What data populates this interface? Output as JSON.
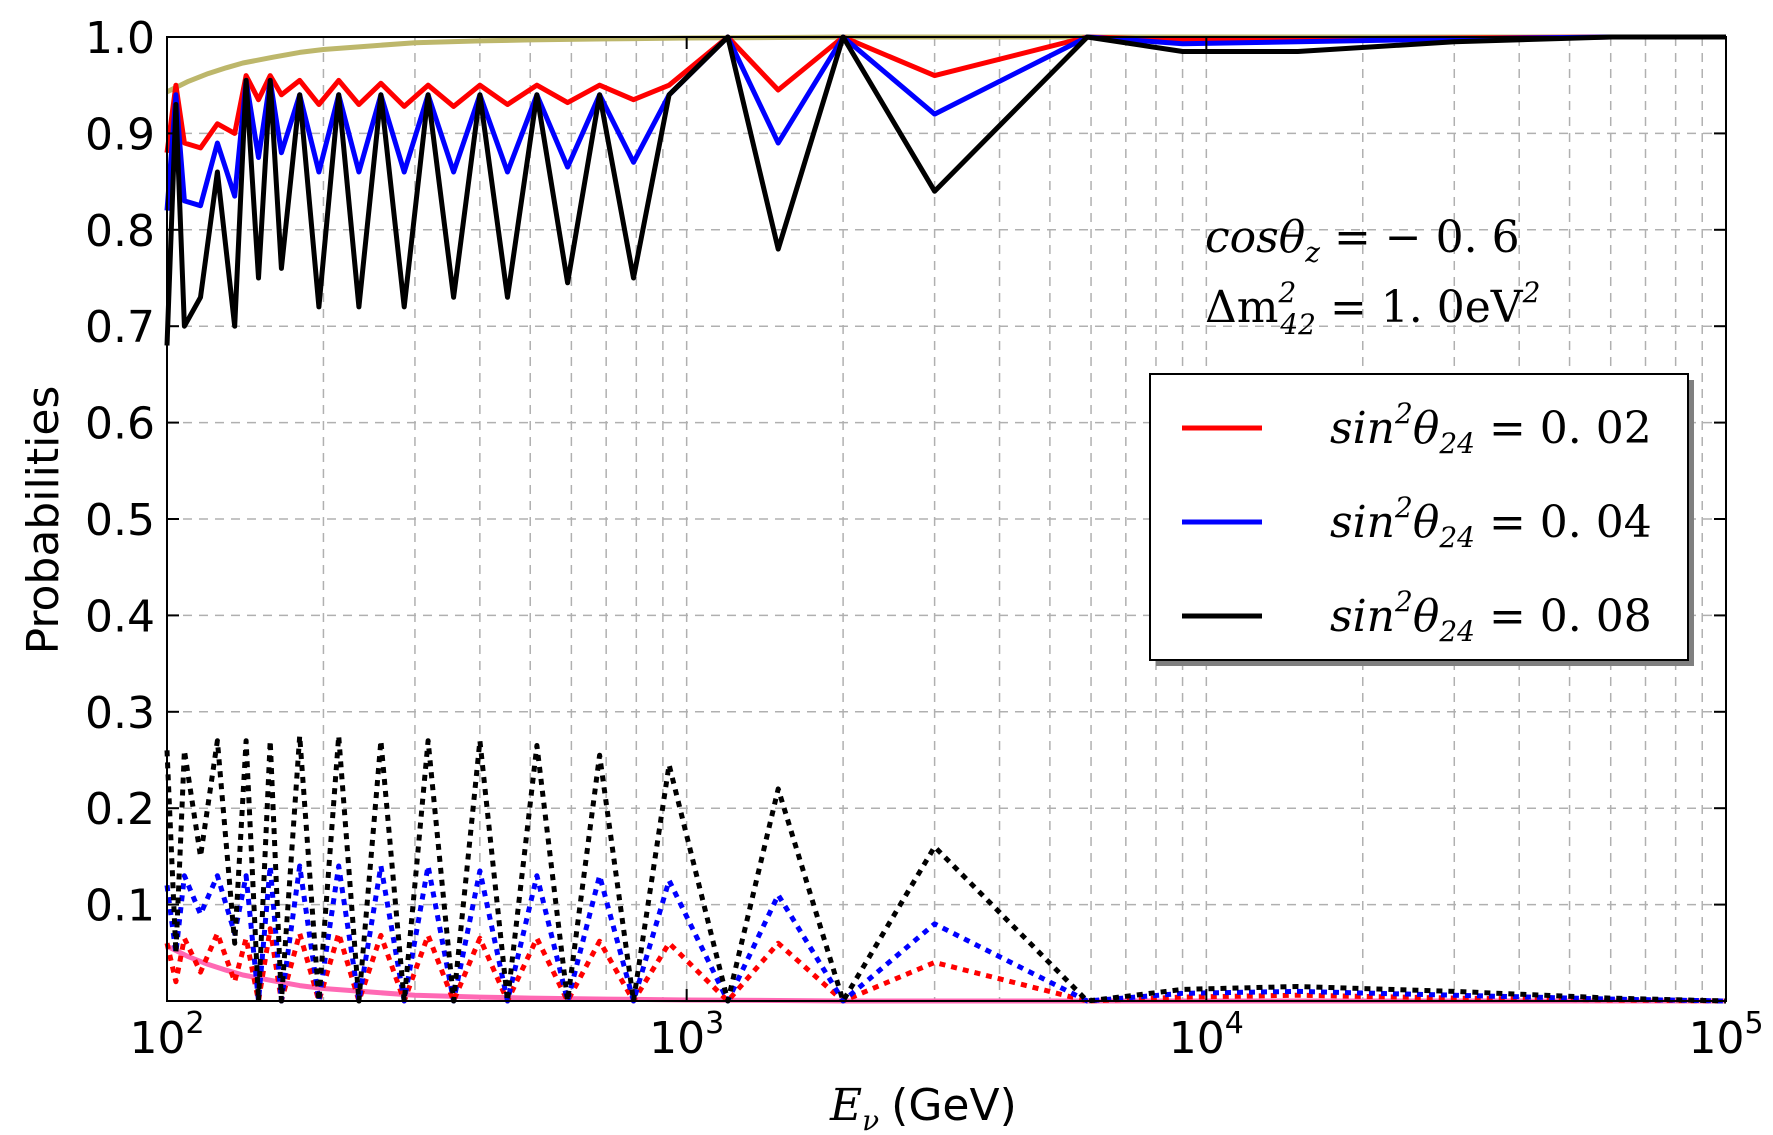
{
  "chart_data": {
    "type": "line",
    "xlabel_symbol": "E",
    "xlabel_sub": "ν",
    "xlabel_unit": "(GeV)",
    "ylabel": "Probabilities",
    "xscale": "log",
    "xlim": [
      100,
      100000
    ],
    "ylim": [
      0,
      1.0
    ],
    "grid": true,
    "xticks": [
      {
        "value": 100,
        "base": "10",
        "exp": "2"
      },
      {
        "value": 1000,
        "base": "10",
        "exp": "3"
      },
      {
        "value": 10000,
        "base": "10",
        "exp": "4"
      },
      {
        "value": 100000,
        "base": "10",
        "exp": "5"
      }
    ],
    "yticks": [
      {
        "value": 0.1,
        "label": "0.1"
      },
      {
        "value": 0.2,
        "label": "0.2"
      },
      {
        "value": 0.3,
        "label": "0.3"
      },
      {
        "value": 0.4,
        "label": "0.4"
      },
      {
        "value": 0.5,
        "label": "0.5"
      },
      {
        "value": 0.6,
        "label": "0.6"
      },
      {
        "value": 0.7,
        "label": "0.7"
      },
      {
        "value": 0.8,
        "label": "0.8"
      },
      {
        "value": 0.9,
        "label": "0.9"
      },
      {
        "value": 1.0,
        "label": "1.0"
      }
    ],
    "annotations": {
      "line1": {
        "lhs": "cosθ",
        "sub": "z",
        "rhs": " = − 0. 6"
      },
      "line2": {
        "lhs": "Δm",
        "sup": "2",
        "sub": "42",
        "rhs": " = 1. 0eV",
        "rhs_sup": "2"
      }
    },
    "legend": {
      "placement": "center-right",
      "entries": [
        {
          "lhs": "sin",
          "sup": "2",
          "theta": "θ",
          "sub": "24",
          "rhs": " = 0. 02",
          "color": "#ff0000"
        },
        {
          "lhs": "sin",
          "sup": "2",
          "theta": "θ",
          "sub": "24",
          "rhs": " = 0. 04",
          "color": "#0000ff"
        },
        {
          "lhs": "sin",
          "sup": "2",
          "theta": "θ",
          "sub": "24",
          "rhs": " = 0. 08",
          "color": "#000000"
        }
      ]
    },
    "reference_series": [
      {
        "color": "#bdb76b",
        "style": "solid",
        "x": [
          100,
          110,
          120,
          130,
          140,
          160,
          180,
          200,
          250,
          300,
          400,
          500,
          700,
          1000,
          1500,
          2000,
          5000,
          100000
        ],
        "y": [
          0.943,
          0.954,
          0.962,
          0.968,
          0.973,
          0.979,
          0.984,
          0.987,
          0.991,
          0.994,
          0.996,
          0.997,
          0.998,
          0.999,
          0.9995,
          1.0,
          1.0,
          1.0
        ]
      },
      {
        "color": "#ff69b4",
        "style": "solid",
        "x": [
          100,
          110,
          120,
          130,
          140,
          160,
          180,
          200,
          250,
          300,
          400,
          500,
          700,
          1000,
          1500,
          2000,
          5000,
          100000
        ],
        "y": [
          0.057,
          0.046,
          0.038,
          0.032,
          0.027,
          0.021,
          0.016,
          0.013,
          0.009,
          0.006,
          0.004,
          0.003,
          0.002,
          0.001,
          0.0005,
          0.0,
          0.0,
          0.0
        ]
      }
    ],
    "series": [
      {
        "color": "#ff0000",
        "style": "solid",
        "x": [
          100,
          104,
          108,
          116,
          125,
          135,
          142,
          150,
          158,
          166,
          180,
          196,
          214,
          234,
          258,
          286,
          318,
          356,
          400,
          452,
          515,
          590,
          680,
          790,
          925,
          1200,
          1500,
          2000,
          3000,
          5900,
          9000,
          15000,
          30000,
          60000,
          100000
        ],
        "y": [
          0.88,
          0.95,
          0.89,
          0.885,
          0.91,
          0.9,
          0.96,
          0.935,
          0.96,
          0.94,
          0.955,
          0.93,
          0.955,
          0.93,
          0.952,
          0.928,
          0.95,
          0.928,
          0.95,
          0.93,
          0.95,
          0.932,
          0.95,
          0.935,
          0.95,
          1.0,
          0.945,
          1.0,
          0.96,
          1.0,
          0.997,
          0.998,
          0.999,
          1.0,
          1.0
        ]
      },
      {
        "color": "#0000ff",
        "style": "solid",
        "x": [
          100,
          104,
          108,
          116,
          125,
          135,
          142,
          150,
          158,
          166,
          180,
          196,
          214,
          234,
          258,
          286,
          318,
          356,
          400,
          452,
          515,
          590,
          680,
          790,
          925,
          1200,
          1500,
          2000,
          3000,
          5900,
          9000,
          15000,
          30000,
          60000,
          100000
        ],
        "y": [
          0.82,
          0.94,
          0.83,
          0.825,
          0.89,
          0.835,
          0.955,
          0.875,
          0.955,
          0.88,
          0.94,
          0.86,
          0.94,
          0.86,
          0.94,
          0.86,
          0.94,
          0.86,
          0.94,
          0.86,
          0.94,
          0.865,
          0.94,
          0.87,
          0.94,
          1.0,
          0.89,
          1.0,
          0.92,
          1.0,
          0.993,
          0.995,
          0.998,
          1.0,
          1.0
        ]
      },
      {
        "color": "#000000",
        "style": "solid",
        "x": [
          100,
          104,
          108,
          116,
          125,
          135,
          142,
          150,
          158,
          166,
          180,
          196,
          214,
          234,
          258,
          286,
          318,
          356,
          400,
          452,
          515,
          590,
          680,
          790,
          925,
          1200,
          1500,
          2000,
          3000,
          5900,
          9000,
          15000,
          30000,
          60000,
          100000
        ],
        "y": [
          0.68,
          0.93,
          0.7,
          0.73,
          0.86,
          0.7,
          0.955,
          0.75,
          0.955,
          0.76,
          0.94,
          0.72,
          0.94,
          0.72,
          0.94,
          0.72,
          0.94,
          0.73,
          0.94,
          0.73,
          0.94,
          0.745,
          0.94,
          0.75,
          0.94,
          1.0,
          0.78,
          1.0,
          0.84,
          1.0,
          0.985,
          0.985,
          0.995,
          1.0,
          1.0
        ]
      },
      {
        "color": "#ff0000",
        "style": "dotted",
        "x": [
          100,
          104,
          108,
          116,
          125,
          135,
          142,
          150,
          158,
          166,
          180,
          196,
          214,
          234,
          258,
          286,
          318,
          356,
          400,
          452,
          515,
          590,
          680,
          790,
          925,
          1200,
          1500,
          2000,
          3000,
          5900,
          9000,
          15000,
          30000,
          60000,
          100000
        ],
        "y": [
          0.06,
          0.02,
          0.065,
          0.03,
          0.07,
          0.02,
          0.065,
          0.0,
          0.075,
          0.0,
          0.07,
          0.0,
          0.07,
          0.0,
          0.068,
          0.0,
          0.068,
          0.0,
          0.065,
          0.0,
          0.065,
          0.0,
          0.062,
          0.0,
          0.06,
          0.0,
          0.06,
          0.0,
          0.04,
          0.0,
          0.004,
          0.006,
          0.003,
          0.001,
          0.0
        ]
      },
      {
        "color": "#0000ff",
        "style": "dotted",
        "x": [
          100,
          104,
          108,
          116,
          125,
          135,
          142,
          150,
          158,
          166,
          180,
          196,
          214,
          234,
          258,
          286,
          318,
          356,
          400,
          452,
          515,
          590,
          680,
          790,
          925,
          1200,
          1500,
          2000,
          3000,
          5900,
          9000,
          15000,
          30000,
          60000,
          100000
        ],
        "y": [
          0.12,
          0.05,
          0.13,
          0.09,
          0.13,
          0.07,
          0.13,
          0.0,
          0.14,
          0.0,
          0.14,
          0.0,
          0.14,
          0.0,
          0.14,
          0.0,
          0.14,
          0.0,
          0.135,
          0.0,
          0.13,
          0.0,
          0.13,
          0.0,
          0.125,
          0.0,
          0.11,
          0.0,
          0.08,
          0.0,
          0.008,
          0.01,
          0.006,
          0.002,
          0.0
        ]
      },
      {
        "color": "#000000",
        "style": "dotted",
        "x": [
          100,
          104,
          108,
          116,
          125,
          135,
          142,
          150,
          158,
          166,
          180,
          196,
          214,
          234,
          258,
          286,
          318,
          356,
          400,
          452,
          515,
          590,
          680,
          790,
          925,
          1200,
          1500,
          2000,
          3000,
          5900,
          9000,
          15000,
          30000,
          60000,
          100000
        ],
        "y": [
          0.26,
          0.05,
          0.26,
          0.15,
          0.27,
          0.06,
          0.27,
          0.0,
          0.27,
          0.0,
          0.275,
          0.0,
          0.275,
          0.0,
          0.27,
          0.0,
          0.27,
          0.0,
          0.27,
          0.0,
          0.265,
          0.0,
          0.255,
          0.0,
          0.245,
          0.0,
          0.22,
          0.0,
          0.16,
          0.0,
          0.012,
          0.015,
          0.01,
          0.003,
          0.0
        ]
      }
    ]
  }
}
